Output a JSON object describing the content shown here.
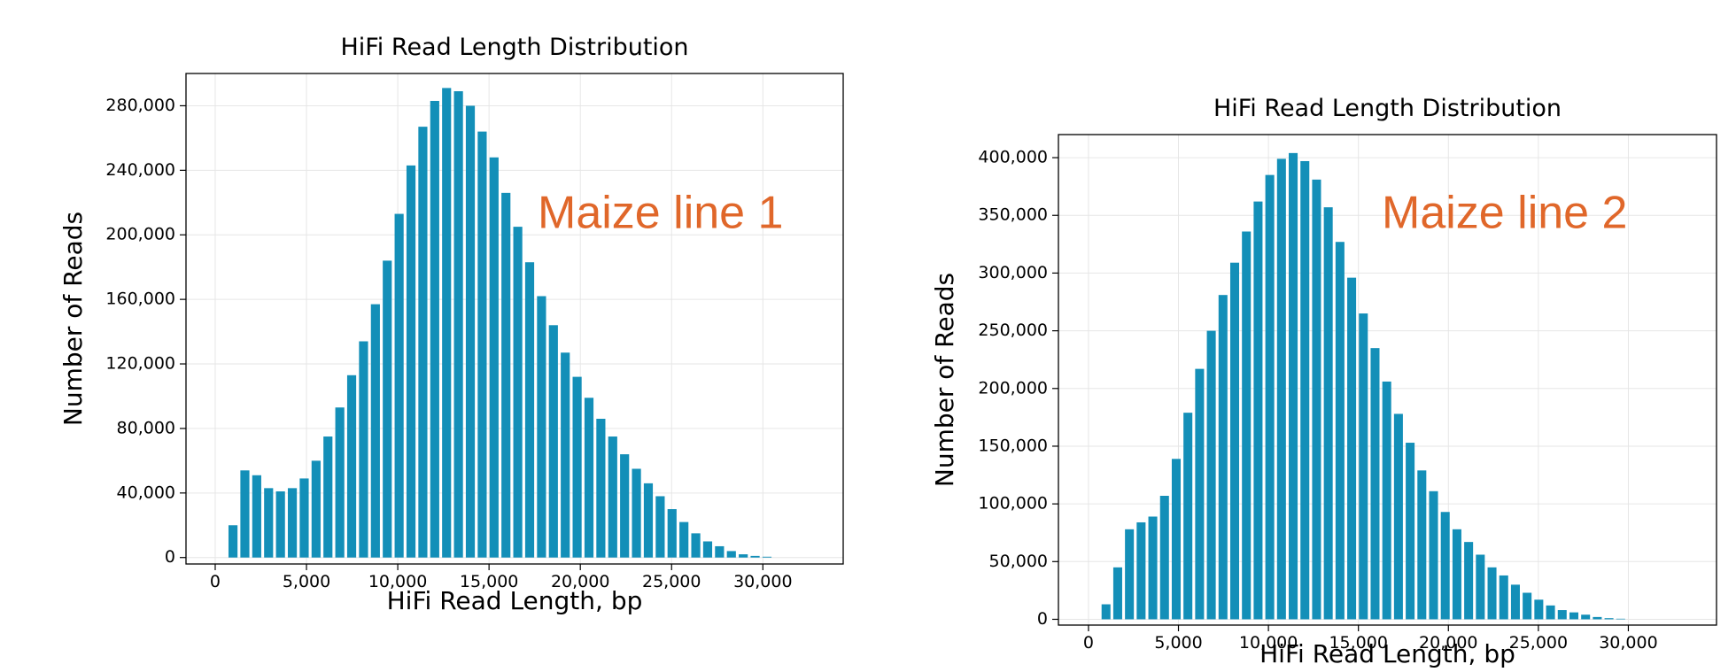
{
  "chart_data": [
    {
      "type": "histogram",
      "title": "HiFi Read Length Distribution",
      "x_label": "HiFi Read Length, bp",
      "y_label": "Number of Reads",
      "annotation": "Maize line 1",
      "annotation_color": "#e0672a",
      "color": "#138fb8",
      "grid": true,
      "bins": [
        650,
        1300,
        1950,
        2600,
        3250,
        3900,
        4550,
        5200,
        5850,
        6500,
        7150,
        7800,
        8450,
        9100,
        9750,
        10400,
        11050,
        11700,
        12350,
        13000,
        13650,
        14300,
        14950,
        15600,
        16250,
        16900,
        17550,
        18200,
        18850,
        19500,
        20150,
        20800,
        21450,
        22100,
        22750,
        23400,
        24050,
        24700,
        25350,
        26000,
        26650,
        27300,
        27950,
        28600,
        29250,
        29900,
        30550
      ],
      "values": [
        20000,
        54000,
        51000,
        43000,
        41000,
        43000,
        49000,
        60000,
        75000,
        93000,
        113000,
        134000,
        157000,
        184000,
        213000,
        243000,
        267000,
        283000,
        291000,
        289000,
        280000,
        264000,
        248000,
        226000,
        205000,
        183000,
        162000,
        144000,
        127000,
        112000,
        99000,
        86000,
        75000,
        64000,
        55000,
        46000,
        38000,
        30000,
        22000,
        15000,
        10000,
        7000,
        4000,
        2000,
        1000,
        500
      ],
      "xlim": [
        -1600,
        34400
      ],
      "xticks": [
        0,
        {
          "value": 5000,
          "label": "5,000"
        },
        {
          "value": 10000,
          "label": "10,000"
        },
        {
          "value": 15000,
          "label": "15,000"
        },
        {
          "value": 20000,
          "label": "20,000"
        },
        {
          "value": 25000,
          "label": "25,000"
        },
        {
          "value": 30000,
          "label": "30,000"
        }
      ],
      "ylim": [
        -4000,
        300000
      ],
      "yticks": [
        0,
        {
          "value": 40000,
          "label": "40,000"
        },
        {
          "value": 80000,
          "label": "80,000"
        },
        {
          "value": 120000,
          "label": "120,000"
        },
        {
          "value": 160000,
          "label": "160,000"
        },
        {
          "value": 200000,
          "label": "200,000"
        },
        {
          "value": 240000,
          "label": "240,000"
        },
        {
          "value": 280000,
          "label": "280,000"
        }
      ]
    },
    {
      "type": "histogram",
      "title": "HiFi Read Length Distribution",
      "x_label": "HiFi Read Length, bp",
      "y_label": "Number of Reads",
      "annotation": "Maize line 2",
      "annotation_color": "#e0672a",
      "color": "#138fb8",
      "grid": true,
      "bins": [
        650,
        1300,
        1950,
        2600,
        3250,
        3900,
        4550,
        5200,
        5850,
        6500,
        7150,
        7800,
        8450,
        9100,
        9750,
        10400,
        11050,
        11700,
        12350,
        13000,
        13650,
        14300,
        14950,
        15600,
        16250,
        16900,
        17550,
        18200,
        18850,
        19500,
        20150,
        20800,
        21450,
        22100,
        22750,
        23400,
        24050,
        24700,
        25350,
        26000,
        26650,
        27300,
        27950,
        28600,
        29250,
        29900
      ],
      "values": [
        13000,
        45000,
        78000,
        84000,
        89000,
        107000,
        139000,
        179000,
        217000,
        250000,
        281000,
        309000,
        336000,
        362000,
        385000,
        399000,
        404000,
        397000,
        381000,
        357000,
        327000,
        296000,
        265000,
        235000,
        206000,
        178000,
        153000,
        129000,
        111000,
        93000,
        78000,
        67000,
        56000,
        45000,
        38000,
        30000,
        23000,
        17000,
        12000,
        8000,
        6000,
        4000,
        2000,
        1000,
        500
      ],
      "xlim": [
        -1670,
        34900
      ],
      "xticks": [
        0,
        {
          "value": 5000,
          "label": "5,000"
        },
        {
          "value": 10000,
          "label": "10,000"
        },
        {
          "value": 15000,
          "label": "15,000"
        },
        {
          "value": 20000,
          "label": "20,000"
        },
        {
          "value": 25000,
          "label": "25,000"
        },
        {
          "value": 30000,
          "label": "30,000"
        }
      ],
      "ylim": [
        -5000,
        420000
      ],
      "yticks": [
        0,
        {
          "value": 50000,
          "label": "50,000"
        },
        {
          "value": 100000,
          "label": "100,000"
        },
        {
          "value": 150000,
          "label": "150,000"
        },
        {
          "value": 200000,
          "label": "200,000"
        },
        {
          "value": 250000,
          "label": "250,000"
        },
        {
          "value": 300000,
          "label": "300,000"
        },
        {
          "value": 350000,
          "label": "350,000"
        },
        {
          "value": 400000,
          "label": "400,000"
        }
      ]
    }
  ]
}
